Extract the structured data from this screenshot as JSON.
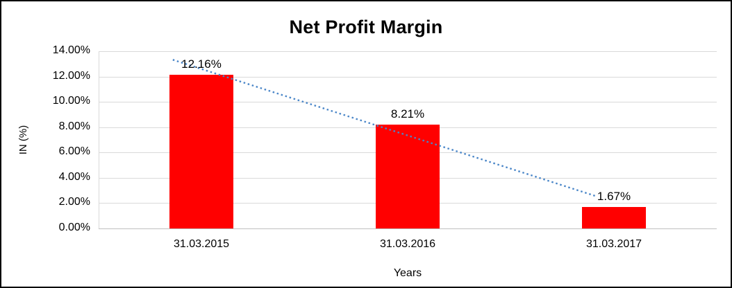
{
  "chart_data": {
    "type": "bar",
    "title": "Net Profit Margin",
    "categories": [
      "31.03.2015",
      "31.03.2016",
      "31.03.2017"
    ],
    "values": [
      12.16,
      8.21,
      1.67
    ],
    "data_labels": [
      "12.16%",
      "8.21%",
      "1.67%"
    ],
    "xlabel": "Years",
    "ylabel": "IN (%)",
    "ylim": [
      0,
      14
    ],
    "ytick_step": 2,
    "ytick_labels": [
      "0.00%",
      "2.00%",
      "4.00%",
      "6.00%",
      "8.00%",
      "10.00%",
      "12.00%",
      "14.00%"
    ],
    "grid": true,
    "legend": "none",
    "bar_color": "#FF0000",
    "trendline": {
      "show": true,
      "type": "linear",
      "color": "#4A86C8",
      "style": "dotted"
    }
  }
}
